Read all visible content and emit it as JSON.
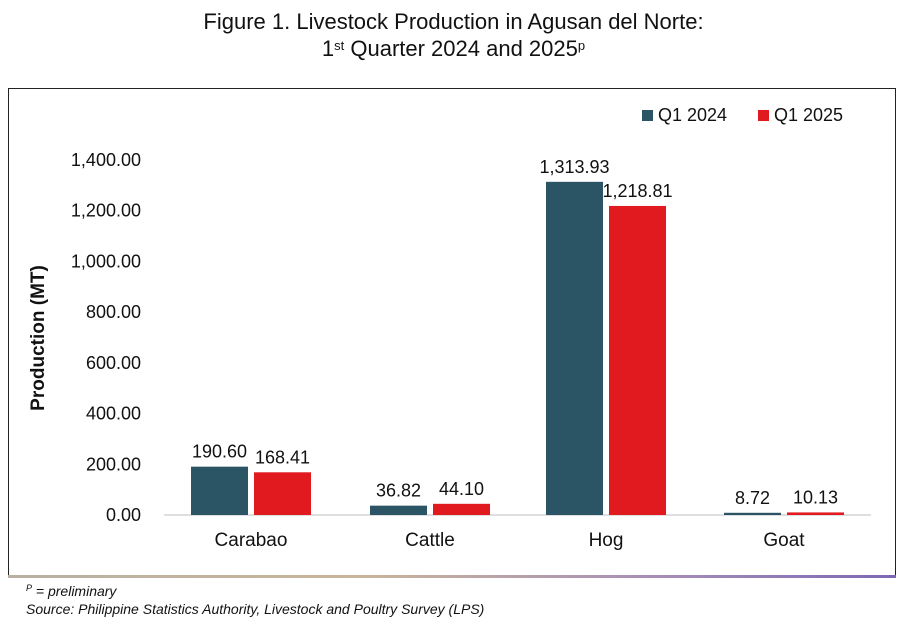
{
  "header": {
    "title_line1": "Figure 1. Livestock Production in Agusan del Norte:",
    "title_line2_pre": "1",
    "title_line2_sup1": "st",
    "title_line2_mid": " Quarter 2024 and 2025",
    "title_line2_sup2": "p"
  },
  "footnotes": {
    "marker": "P",
    "preliminary": " = preliminary",
    "source": "Source: Philippine Statistics Authority, Livestock and Poultry Survey (LPS)"
  },
  "colors": {
    "q1_2024": "#2b5564",
    "q1_2025": "#e11a1f"
  },
  "chart_data": {
    "type": "bar",
    "categories": [
      "Carabao",
      "Cattle",
      "Hog",
      "Goat"
    ],
    "series": [
      {
        "name": "Q1 2024",
        "values": [
          190.6,
          36.82,
          1313.93,
          8.72
        ],
        "labels": [
          "190.60",
          "36.82",
          "1,313.93",
          "8.72"
        ]
      },
      {
        "name": "Q1 2025",
        "values": [
          168.41,
          44.1,
          1218.81,
          10.13
        ],
        "labels": [
          "168.41",
          "44.10",
          "1,218.81",
          "10.13"
        ]
      }
    ],
    "ylabel": "Production (MT)",
    "xlabel": "",
    "ylim": [
      0,
      1400
    ],
    "yticks": [
      0,
      200,
      400,
      600,
      800,
      1000,
      1200,
      1400
    ],
    "ytick_labels": [
      "0.00",
      "200.00",
      "400.00",
      "600.00",
      "800.00",
      "1,000.00",
      "1,200.00",
      "1,400.00"
    ],
    "grid": false,
    "legend_position": "top-right"
  }
}
